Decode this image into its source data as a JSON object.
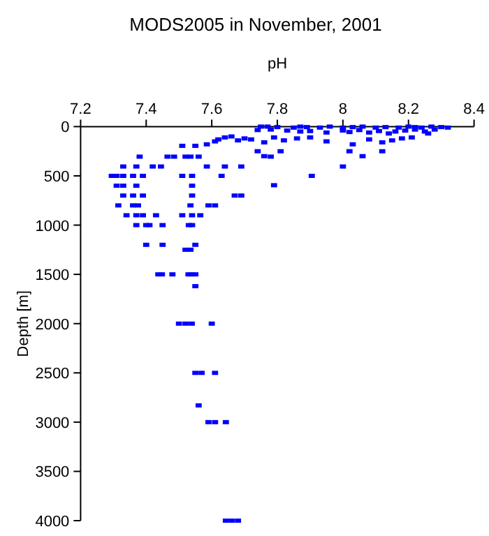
{
  "chart_data": {
    "type": "scatter",
    "title": "MODS2005 in November, 2001",
    "xlabel": "pH",
    "ylabel": "Depth [m]",
    "xlim": [
      7.2,
      8.4
    ],
    "xticks": [
      7.2,
      7.4,
      7.6,
      7.8,
      8,
      8.2,
      8.4
    ],
    "ylim": [
      4000,
      0
    ],
    "yticks": [
      0,
      500,
      1000,
      1500,
      2000,
      2500,
      3000,
      3500,
      4000
    ],
    "grid": false,
    "marker": "square",
    "series": [
      {
        "color": "#0000ff",
        "x": [
          7.75,
          7.77,
          7.8,
          7.85,
          7.87,
          7.89,
          7.93,
          7.96,
          8.0,
          8.03,
          8.06,
          8.1,
          8.13,
          8.17,
          8.2,
          8.22,
          8.24,
          8.27,
          8.3,
          8.32,
          7.74,
          7.78,
          7.83,
          7.87,
          7.9,
          7.95,
          8.0,
          8.02,
          8.05,
          8.08,
          8.11,
          8.14,
          8.16,
          8.19,
          8.22,
          8.25,
          8.28,
          8.26,
          7.61,
          7.62,
          7.64,
          7.66,
          7.68,
          7.7,
          7.72,
          7.76,
          7.79,
          7.82,
          7.86,
          7.9,
          7.95,
          8.03,
          8.08,
          8.12,
          8.15,
          8.18,
          8.21,
          7.51,
          7.55,
          7.585,
          7.465,
          7.485,
          7.52,
          7.535,
          7.56,
          7.74,
          7.76,
          7.78,
          7.81,
          8.02,
          8.06,
          8.12,
          7.38,
          7.33,
          7.37,
          7.42,
          7.445,
          7.585,
          7.64,
          7.69,
          8.0,
          7.295,
          7.31,
          7.33,
          7.36,
          7.39,
          7.51,
          7.54,
          7.63,
          7.905,
          7.31,
          7.33,
          7.37,
          7.54,
          7.79,
          7.33,
          7.36,
          7.39,
          7.54,
          7.67,
          7.69,
          7.315,
          7.36,
          7.375,
          7.535,
          7.59,
          7.61,
          7.34,
          7.37,
          7.39,
          7.43,
          7.51,
          7.54,
          7.565,
          7.37,
          7.4,
          7.41,
          7.45,
          7.53,
          7.54,
          7.4,
          7.45,
          7.55,
          7.52,
          7.535,
          7.437,
          7.448,
          7.48,
          7.529,
          7.539,
          7.55,
          7.55,
          7.5,
          7.52,
          7.539,
          7.6,
          7.55,
          7.569,
          7.61,
          7.56,
          7.59,
          7.61,
          7.643,
          7.643,
          7.661,
          7.68
        ],
        "values": [
          0,
          0,
          5,
          10,
          0,
          5,
          10,
          0,
          10,
          5,
          0,
          10,
          5,
          10,
          0,
          5,
          10,
          0,
          5,
          10,
          35,
          30,
          40,
          50,
          45,
          60,
          40,
          55,
          35,
          60,
          45,
          70,
          50,
          40,
          30,
          50,
          30,
          70,
          150,
          130,
          110,
          100,
          140,
          120,
          130,
          160,
          110,
          140,
          120,
          110,
          150,
          180,
          130,
          160,
          140,
          120,
          110,
          195,
          195,
          180,
          305,
          305,
          305,
          305,
          305,
          250,
          300,
          305,
          250,
          250,
          300,
          250,
          305,
          405,
          405,
          405,
          405,
          405,
          405,
          405,
          405,
          500,
          500,
          500,
          500,
          500,
          500,
          500,
          500,
          500,
          600,
          600,
          600,
          600,
          595,
          700,
          700,
          700,
          700,
          700,
          700,
          800,
          800,
          800,
          800,
          800,
          800,
          900,
          900,
          900,
          900,
          900,
          900,
          900,
          1000,
          1000,
          1000,
          1000,
          1000,
          1000,
          1200,
          1200,
          1200,
          1250,
          1250,
          1500,
          1500,
          1500,
          1500,
          1500,
          1500,
          1620,
          2000,
          2000,
          2000,
          2000,
          2500,
          2500,
          2500,
          2830,
          3000,
          3000,
          3000,
          4000,
          4000,
          4000
        ]
      }
    ]
  }
}
